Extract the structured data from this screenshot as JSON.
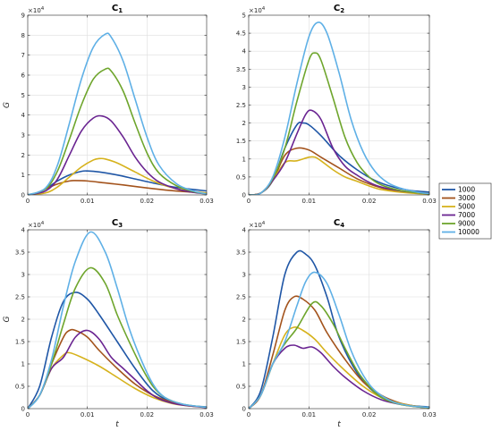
{
  "chart_data": [
    {
      "type": "line",
      "title": "C",
      "title_sub": "1",
      "xlabel": "",
      "ylabel": "G",
      "multiplier": "×10",
      "multiplier_exp": "4",
      "xlim": [
        0,
        0.03
      ],
      "ylim": [
        0,
        9
      ],
      "xticks": [
        0,
        0.01,
        0.02,
        0.03
      ],
      "xtick_labels": [
        "0",
        "0.01",
        "0.02",
        "0.03"
      ],
      "yticks": [
        0,
        1,
        2,
        3,
        4,
        5,
        6,
        7,
        8,
        9
      ],
      "ytick_labels": [
        "0",
        "1",
        "2",
        "3",
        "4",
        "5",
        "6",
        "7",
        "8",
        "9"
      ],
      "grid": true,
      "series": [
        {
          "name": "1000",
          "x": [
            0,
            0.0015,
            0.003,
            0.005,
            0.007,
            0.009,
            0.01,
            0.012,
            0.015,
            0.018,
            0.021,
            0.024,
            0.027,
            0.03
          ],
          "y": [
            0,
            0.1,
            0.3,
            0.7,
            1.0,
            1.18,
            1.2,
            1.15,
            1.0,
            0.8,
            0.6,
            0.42,
            0.3,
            0.2
          ]
        },
        {
          "name": "3000",
          "x": [
            0,
            0.0015,
            0.003,
            0.005,
            0.007,
            0.008,
            0.01,
            0.013,
            0.016,
            0.02,
            0.024,
            0.027,
            0.03
          ],
          "y": [
            0,
            0.1,
            0.3,
            0.55,
            0.7,
            0.72,
            0.7,
            0.6,
            0.5,
            0.35,
            0.22,
            0.15,
            0.1
          ]
        },
        {
          "name": "5000",
          "x": [
            0,
            0.003,
            0.005,
            0.007,
            0.009,
            0.011,
            0.012,
            0.013,
            0.015,
            0.018,
            0.021,
            0.024,
            0.027,
            0.03
          ],
          "y": [
            0,
            0.1,
            0.4,
            0.9,
            1.4,
            1.75,
            1.82,
            1.8,
            1.6,
            1.15,
            0.7,
            0.38,
            0.2,
            0.1
          ]
        },
        {
          "name": "7000",
          "x": [
            0,
            0.003,
            0.005,
            0.007,
            0.009,
            0.011,
            0.0125,
            0.014,
            0.016,
            0.018,
            0.02,
            0.022,
            0.025,
            0.028,
            0.03
          ],
          "y": [
            0,
            0.2,
            0.8,
            2.0,
            3.2,
            3.85,
            3.95,
            3.7,
            2.9,
            1.9,
            1.15,
            0.65,
            0.3,
            0.12,
            0.05
          ]
        },
        {
          "name": "9000",
          "x": [
            0,
            0.003,
            0.005,
            0.007,
            0.009,
            0.011,
            0.013,
            0.014,
            0.016,
            0.018,
            0.02,
            0.022,
            0.025,
            0.028,
            0.03
          ],
          "y": [
            0,
            0.3,
            1.2,
            2.8,
            4.5,
            5.8,
            6.3,
            6.2,
            5.2,
            3.6,
            2.1,
            1.1,
            0.45,
            0.15,
            0.05
          ]
        },
        {
          "name": "10000",
          "x": [
            0,
            0.003,
            0.005,
            0.007,
            0.009,
            0.011,
            0.013,
            0.014,
            0.016,
            0.018,
            0.02,
            0.022,
            0.025,
            0.028,
            0.03
          ],
          "y": [
            0,
            0.35,
            1.5,
            3.6,
            5.8,
            7.4,
            8.05,
            7.9,
            6.7,
            4.8,
            2.9,
            1.5,
            0.55,
            0.18,
            0.05
          ]
        }
      ]
    },
    {
      "type": "line",
      "title": "C",
      "title_sub": "2",
      "xlabel": "",
      "ylabel": "",
      "multiplier": "×10",
      "multiplier_exp": "4",
      "xlim": [
        0,
        0.03
      ],
      "ylim": [
        0,
        5
      ],
      "xticks": [
        0,
        0.01,
        0.02,
        0.03
      ],
      "xtick_labels": [
        "0",
        "0.01",
        "0.02",
        "0.03"
      ],
      "yticks": [
        0,
        0.5,
        1,
        1.5,
        2,
        2.5,
        3,
        3.5,
        4,
        4.5,
        5
      ],
      "ytick_labels": [
        "0",
        "0.5",
        "1",
        "1.5",
        "2",
        "2.5",
        "3",
        "3.5",
        "4",
        "4.5",
        "5"
      ],
      "grid": true,
      "series": [
        {
          "name": "1000",
          "x": [
            0,
            0.002,
            0.004,
            0.006,
            0.008,
            0.009,
            0.01,
            0.012,
            0.015,
            0.018,
            0.021,
            0.024,
            0.027,
            0.03
          ],
          "y": [
            0,
            0.05,
            0.4,
            1.3,
            1.95,
            2.0,
            1.95,
            1.65,
            1.1,
            0.7,
            0.4,
            0.22,
            0.12,
            0.08
          ]
        },
        {
          "name": "3000",
          "x": [
            0,
            0.002,
            0.004,
            0.006,
            0.008,
            0.01,
            0.012,
            0.015,
            0.018,
            0.021,
            0.024,
            0.027,
            0.03
          ],
          "y": [
            0,
            0.05,
            0.4,
            1.1,
            1.3,
            1.25,
            1.05,
            0.75,
            0.45,
            0.25,
            0.12,
            0.07,
            0.05
          ]
        },
        {
          "name": "5000",
          "x": [
            0,
            0.002,
            0.004,
            0.006,
            0.008,
            0.01,
            0.011,
            0.012,
            0.014,
            0.016,
            0.018,
            0.02,
            0.022,
            0.025,
            0.028,
            0.03
          ],
          "y": [
            0,
            0.05,
            0.4,
            0.9,
            0.95,
            1.05,
            1.05,
            0.95,
            0.7,
            0.5,
            0.38,
            0.25,
            0.15,
            0.08,
            0.04,
            0.02
          ]
        },
        {
          "name": "7000",
          "x": [
            0,
            0.002,
            0.004,
            0.006,
            0.008,
            0.0095,
            0.0105,
            0.012,
            0.014,
            0.016,
            0.018,
            0.02,
            0.022,
            0.025,
            0.028,
            0.03
          ],
          "y": [
            0,
            0.05,
            0.4,
            0.9,
            1.7,
            2.25,
            2.35,
            2.1,
            1.3,
            0.8,
            0.55,
            0.35,
            0.22,
            0.12,
            0.06,
            0.03
          ]
        },
        {
          "name": "9000",
          "x": [
            0,
            0.002,
            0.004,
            0.006,
            0.008,
            0.01,
            0.011,
            0.012,
            0.014,
            0.016,
            0.018,
            0.02,
            0.022,
            0.025,
            0.028,
            0.03
          ],
          "y": [
            0,
            0.05,
            0.45,
            1.3,
            2.6,
            3.75,
            3.95,
            3.75,
            2.7,
            1.6,
            0.9,
            0.5,
            0.28,
            0.13,
            0.06,
            0.03
          ]
        },
        {
          "name": "10000",
          "x": [
            0,
            0.002,
            0.004,
            0.006,
            0.008,
            0.01,
            0.0115,
            0.013,
            0.015,
            0.017,
            0.019,
            0.021,
            0.023,
            0.025,
            0.028,
            0.03
          ],
          "y": [
            0,
            0.05,
            0.5,
            1.6,
            3.1,
            4.4,
            4.8,
            4.5,
            3.4,
            2.1,
            1.2,
            0.65,
            0.35,
            0.2,
            0.08,
            0.04
          ]
        }
      ]
    },
    {
      "type": "line",
      "title": "C",
      "title_sub": "3",
      "xlabel": "t",
      "ylabel": "G",
      "multiplier": "×10",
      "multiplier_exp": "4",
      "xlim": [
        0,
        0.03
      ],
      "ylim": [
        0,
        4
      ],
      "xticks": [
        0,
        0.01,
        0.02,
        0.03
      ],
      "xtick_labels": [
        "0",
        "0.01",
        "0.02",
        "0.03"
      ],
      "yticks": [
        0,
        0.5,
        1,
        1.5,
        2,
        2.5,
        3,
        3.5,
        4
      ],
      "ytick_labels": [
        "0",
        "0.5",
        "1",
        "1.5",
        "2",
        "2.5",
        "3",
        "3.5",
        "4"
      ],
      "grid": true,
      "series": [
        {
          "name": "1000",
          "x": [
            0,
            0.002,
            0.004,
            0.006,
            0.008,
            0.01,
            0.012,
            0.015,
            0.018,
            0.021,
            0.024,
            0.027,
            0.03
          ],
          "y": [
            0,
            0.5,
            1.6,
            2.4,
            2.6,
            2.45,
            2.1,
            1.5,
            0.9,
            0.4,
            0.15,
            0.07,
            0.04
          ]
        },
        {
          "name": "3000",
          "x": [
            0,
            0.002,
            0.004,
            0.006,
            0.007,
            0.008,
            0.01,
            0.012,
            0.015,
            0.018,
            0.021,
            0.024,
            0.027,
            0.03
          ],
          "y": [
            0,
            0.3,
            1.0,
            1.6,
            1.75,
            1.75,
            1.6,
            1.3,
            0.9,
            0.55,
            0.3,
            0.15,
            0.07,
            0.03
          ]
        },
        {
          "name": "5000",
          "x": [
            0,
            0.002,
            0.004,
            0.006,
            0.007,
            0.009,
            0.012,
            0.015,
            0.018,
            0.021,
            0.024,
            0.027,
            0.03
          ],
          "y": [
            0,
            0.3,
            0.9,
            1.2,
            1.25,
            1.15,
            0.95,
            0.7,
            0.45,
            0.25,
            0.12,
            0.06,
            0.03
          ]
        },
        {
          "name": "7000",
          "x": [
            0,
            0.002,
            0.004,
            0.006,
            0.008,
            0.01,
            0.012,
            0.014,
            0.016,
            0.018,
            0.02,
            0.022,
            0.025,
            0.028,
            0.03
          ],
          "y": [
            0,
            0.3,
            0.9,
            1.15,
            1.6,
            1.75,
            1.55,
            1.15,
            0.9,
            0.65,
            0.4,
            0.22,
            0.1,
            0.05,
            0.02
          ]
        },
        {
          "name": "9000",
          "x": [
            0,
            0.002,
            0.004,
            0.006,
            0.008,
            0.0105,
            0.013,
            0.015,
            0.017,
            0.019,
            0.021,
            0.023,
            0.026,
            0.03
          ],
          "y": [
            0,
            0.3,
            1.0,
            1.9,
            2.7,
            3.15,
            2.8,
            2.1,
            1.5,
            0.95,
            0.5,
            0.25,
            0.1,
            0.03
          ]
        },
        {
          "name": "10000",
          "x": [
            0,
            0.002,
            0.004,
            0.006,
            0.008,
            0.0105,
            0.013,
            0.015,
            0.017,
            0.019,
            0.021,
            0.023,
            0.026,
            0.03
          ],
          "y": [
            0,
            0.3,
            1.1,
            2.3,
            3.3,
            3.95,
            3.5,
            2.7,
            1.8,
            1.1,
            0.55,
            0.25,
            0.1,
            0.03
          ]
        }
      ]
    },
    {
      "type": "line",
      "title": "C",
      "title_sub": "4",
      "xlabel": "t",
      "ylabel": "",
      "multiplier": "×10",
      "multiplier_exp": "4",
      "xlim": [
        0,
        0.03
      ],
      "ylim": [
        0,
        4
      ],
      "xticks": [
        0,
        0.01,
        0.02,
        0.03
      ],
      "xtick_labels": [
        "0",
        "0.01",
        "0.02",
        "0.03"
      ],
      "yticks": [
        0,
        0.5,
        1,
        1.5,
        2,
        2.5,
        3,
        3.5,
        4
      ],
      "ytick_labels": [
        "0",
        "0.5",
        "1",
        "1.5",
        "2",
        "2.5",
        "3",
        "3.5",
        "4"
      ],
      "grid": true,
      "series": [
        {
          "name": "1000",
          "x": [
            0,
            0.002,
            0.004,
            0.006,
            0.008,
            0.0095,
            0.011,
            0.013,
            0.015,
            0.018,
            0.021,
            0.024,
            0.027,
            0.03
          ],
          "y": [
            0,
            0.4,
            1.6,
            3.0,
            3.5,
            3.45,
            3.2,
            2.5,
            1.6,
            0.8,
            0.35,
            0.15,
            0.07,
            0.04
          ]
        },
        {
          "name": "3000",
          "x": [
            0,
            0.002,
            0.004,
            0.006,
            0.0075,
            0.009,
            0.011,
            0.013,
            0.016,
            0.019,
            0.022,
            0.025,
            0.028,
            0.03
          ],
          "y": [
            0,
            0.3,
            1.2,
            2.2,
            2.5,
            2.45,
            2.2,
            1.7,
            1.1,
            0.6,
            0.3,
            0.13,
            0.05,
            0.03
          ]
        },
        {
          "name": "5000",
          "x": [
            0,
            0.002,
            0.004,
            0.006,
            0.0075,
            0.009,
            0.011,
            0.013,
            0.016,
            0.019,
            0.022,
            0.025,
            0.028,
            0.03
          ],
          "y": [
            0,
            0.3,
            1.0,
            1.65,
            1.82,
            1.75,
            1.55,
            1.25,
            0.85,
            0.5,
            0.25,
            0.12,
            0.05,
            0.03
          ]
        },
        {
          "name": "7000",
          "x": [
            0,
            0.002,
            0.004,
            0.006,
            0.0075,
            0.009,
            0.0105,
            0.012,
            0.014,
            0.016,
            0.019,
            0.022,
            0.025,
            0.028,
            0.03
          ],
          "y": [
            0,
            0.3,
            1.0,
            1.35,
            1.42,
            1.35,
            1.38,
            1.25,
            0.95,
            0.7,
            0.4,
            0.2,
            0.1,
            0.04,
            0.02
          ]
        },
        {
          "name": "9000",
          "x": [
            0,
            0.002,
            0.004,
            0.006,
            0.008,
            0.0105,
            0.012,
            0.014,
            0.016,
            0.018,
            0.02,
            0.022,
            0.025,
            0.028,
            0.03
          ],
          "y": [
            0,
            0.3,
            1.0,
            1.45,
            1.8,
            2.35,
            2.3,
            1.9,
            1.35,
            0.85,
            0.5,
            0.25,
            0.1,
            0.04,
            0.02
          ]
        },
        {
          "name": "10000",
          "x": [
            0,
            0.002,
            0.004,
            0.006,
            0.008,
            0.0095,
            0.011,
            0.013,
            0.015,
            0.017,
            0.019,
            0.021,
            0.024,
            0.027,
            0.03
          ],
          "y": [
            0,
            0.3,
            1.0,
            1.5,
            2.3,
            2.85,
            3.05,
            2.8,
            2.1,
            1.3,
            0.75,
            0.4,
            0.15,
            0.06,
            0.03
          ]
        }
      ]
    }
  ],
  "colors": {
    "1000": "#1f56a6",
    "3000": "#a3531c",
    "5000": "#d6b21c",
    "7000": "#6a2491",
    "9000": "#6ea52c",
    "10000": "#5fb0e6"
  },
  "legend": {
    "placement": "right",
    "entries": [
      "1000",
      "3000",
      "5000",
      "7000",
      "9000",
      "10000"
    ]
  }
}
